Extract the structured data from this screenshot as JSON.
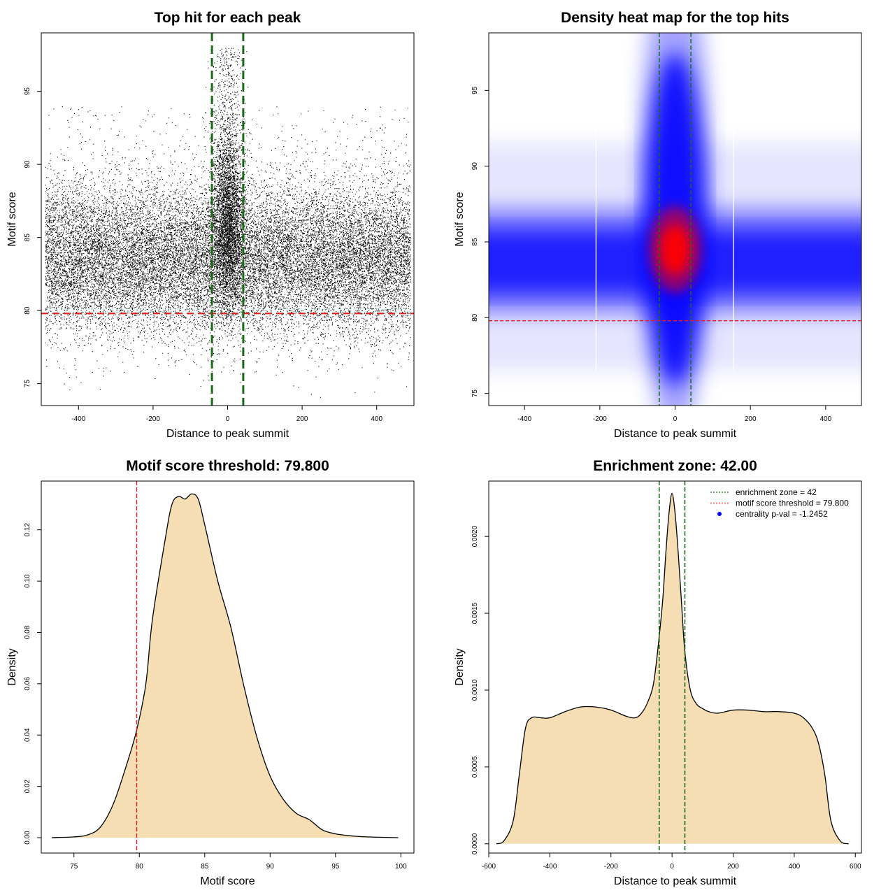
{
  "colors": {
    "threshold_line": "#e02020",
    "zone_line": "#1a6b1a",
    "density_fill": "#f5deb3",
    "points": "#000000",
    "heat_low": "#0000ff",
    "heat_high": "#ff0000",
    "legend_point": "#0000ff"
  },
  "chart_data": [
    {
      "id": "scatter",
      "type": "scatter",
      "title": "Top hit for each peak",
      "xlabel": "Distance to peak summit",
      "ylabel": "Motif score",
      "xlim": [
        -500,
        500
      ],
      "ylim": [
        73.5,
        99
      ],
      "xticks": [
        -400,
        -200,
        0,
        200,
        400
      ],
      "yticks": [
        75,
        80,
        85,
        90,
        95
      ],
      "threshold": 79.8,
      "zone": [
        -42,
        42
      ],
      "point_x_range": [
        -490,
        490
      ],
      "point_y_center": 83.5,
      "central_y_center": 86,
      "grid": false
    },
    {
      "id": "heatmap",
      "type": "heatmap",
      "title": "Density heat map for the top hits",
      "xlabel": "Distance to peak summit",
      "ylabel": "Motif score",
      "xlim": [
        -495,
        495
      ],
      "ylim": [
        74.2,
        98.8
      ],
      "xticks": [
        -400,
        -200,
        0,
        200,
        400
      ],
      "yticks": [
        75,
        80,
        85,
        90,
        95
      ],
      "threshold": 79.8,
      "zone": [
        -42,
        42
      ],
      "peak": {
        "x": 0,
        "y": 84.5
      },
      "grid": false
    },
    {
      "id": "score_density",
      "type": "area",
      "title": "Motif score threshold: 79.800",
      "xlabel": "Motif score",
      "ylabel": "Density",
      "xlim": [
        72.5,
        101
      ],
      "ylim": [
        -0.006,
        0.139
      ],
      "xticks": [
        75,
        80,
        85,
        90,
        95,
        100
      ],
      "yticks": [
        "0.00",
        "0.02",
        "0.04",
        "0.06",
        "0.08",
        "0.10",
        "0.12"
      ],
      "threshold": 79.8,
      "x": [
        73.3,
        75,
        76,
        77,
        78,
        79,
        79.8,
        80.5,
        81,
        82,
        82.5,
        83,
        83.5,
        84,
        84.5,
        85,
        86,
        87,
        88,
        89,
        90,
        91,
        92,
        93,
        94,
        95,
        96,
        97,
        98,
        99.8
      ],
      "values": [
        0.0,
        0.0003,
        0.001,
        0.004,
        0.013,
        0.028,
        0.042,
        0.06,
        0.085,
        0.117,
        0.13,
        0.133,
        0.132,
        0.134,
        0.132,
        0.122,
        0.1,
        0.082,
        0.059,
        0.039,
        0.024,
        0.015,
        0.0095,
        0.007,
        0.003,
        0.0015,
        0.0008,
        0.0004,
        0.0002,
        0.0
      ],
      "grid": false
    },
    {
      "id": "distance_density",
      "type": "area",
      "title": "Enrichment zone: 42.00",
      "xlabel": "Distance to peak summit",
      "ylabel": "Density",
      "xlim": [
        -600,
        620
      ],
      "ylim": [
        -6e-05,
        0.00236
      ],
      "xticks": [
        -600,
        -400,
        -200,
        0,
        200,
        400,
        600
      ],
      "yticks": [
        "0.0000",
        "0.0005",
        "0.0010",
        "0.0015",
        "0.0020"
      ],
      "zone": [
        -42,
        42
      ],
      "x": [
        -575,
        -550,
        -520,
        -500,
        -480,
        -460,
        -430,
        -400,
        -350,
        -300,
        -250,
        -200,
        -150,
        -120,
        -100,
        -80,
        -60,
        -42,
        -30,
        -20,
        -10,
        0,
        10,
        20,
        30,
        42,
        60,
        80,
        100,
        120,
        150,
        200,
        250,
        300,
        350,
        400,
        430,
        460,
        480,
        500,
        520,
        550,
        578
      ],
      "values": [
        0.0,
        2e-05,
        0.00015,
        0.00045,
        0.00075,
        0.00082,
        0.00082,
        0.00082,
        0.00086,
        0.00089,
        0.00089,
        0.00087,
        0.00083,
        0.00082,
        0.00085,
        0.00092,
        0.00105,
        0.00135,
        0.0016,
        0.0019,
        0.00215,
        0.00228,
        0.00215,
        0.0019,
        0.0016,
        0.00125,
        0.001,
        0.00091,
        0.00088,
        0.00086,
        0.00085,
        0.00087,
        0.00087,
        0.00086,
        0.00086,
        0.00085,
        0.00082,
        0.00075,
        0.00065,
        0.00045,
        0.00015,
        2e-05,
        0.0
      ],
      "legend": {
        "position": "top-right",
        "entries": [
          {
            "label": "enrichment zone = 42",
            "style": "dotted",
            "color": "#1a6b1a"
          },
          {
            "label": "motif score threshold = 79.800",
            "style": "dotted",
            "color": "#e02020"
          },
          {
            "label": "centrality p-val = -1.2452",
            "style": "point",
            "color": "#0000ff"
          }
        ]
      },
      "grid": false
    }
  ]
}
